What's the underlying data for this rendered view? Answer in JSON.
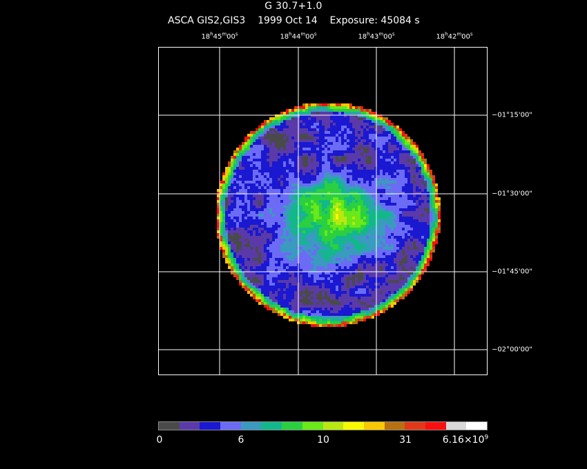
{
  "header": {
    "title": "G 30.7+1.0",
    "instrument": "ASCA GIS2,GIS3",
    "date": "1999 Oct 14",
    "exposure": "Exposure: 45084 s"
  },
  "ra_ticks": [
    {
      "h": "18",
      "m": "45",
      "s": "00"
    },
    {
      "h": "18",
      "m": "44",
      "s": "00"
    },
    {
      "h": "18",
      "m": "43",
      "s": "00"
    },
    {
      "h": "18",
      "m": "42",
      "s": "00"
    }
  ],
  "dec_ticks": [
    "−01°15'00\"",
    "−01°30'00\"",
    "−01°45'00\"",
    "−02°00'00\""
  ],
  "colorbar": {
    "labels": [
      "0",
      "6",
      "10",
      "31"
    ],
    "max_mantissa": "6.16×10",
    "max_exponent": "9",
    "colors": [
      "#4a4a4a",
      "#5a3aa8",
      "#1a18d0",
      "#6b6bf5",
      "#3a9abf",
      "#12b88a",
      "#2ad040",
      "#6ae818",
      "#b8e810",
      "#f8f800",
      "#f8c800",
      "#b87010",
      "#e03818",
      "#f81010",
      "#d8d8d8",
      "#ffffff"
    ]
  }
}
